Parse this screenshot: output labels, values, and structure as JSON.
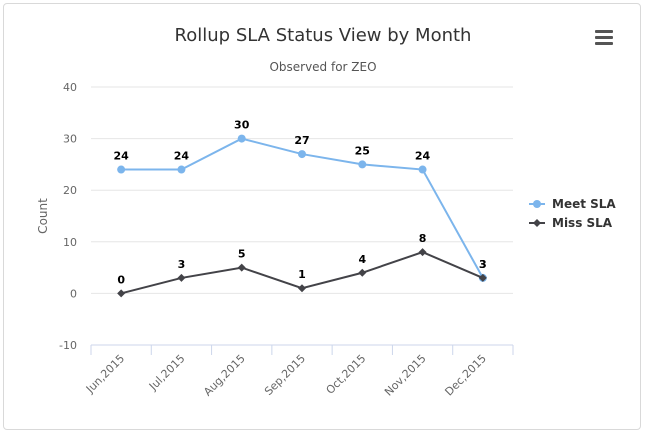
{
  "chart_data": {
    "type": "line",
    "title": "Rollup SLA Status View by Month",
    "subtitle": "Observed for ZEO",
    "xlabel": "",
    "ylabel": "Count",
    "ylim": [
      -10,
      40
    ],
    "yticks": [
      -10,
      0,
      10,
      20,
      30,
      40
    ],
    "categories": [
      "Jun,2015",
      "Jul,2015",
      "Aug,2015",
      "Sep,2015",
      "Oct,2015",
      "Nov,2015",
      "Dec,2015"
    ],
    "series": [
      {
        "name": "Meet SLA",
        "values": [
          24,
          24,
          30,
          27,
          25,
          24,
          3
        ],
        "color": "#7cb5ec",
        "marker": "circle"
      },
      {
        "name": "Miss SLA",
        "values": [
          0,
          3,
          5,
          1,
          4,
          8,
          3
        ],
        "color": "#434348",
        "marker": "diamond"
      }
    ],
    "data_labels": true,
    "grid": true,
    "legend": "right"
  },
  "menu": {
    "icon": "hamburger-menu-icon"
  }
}
